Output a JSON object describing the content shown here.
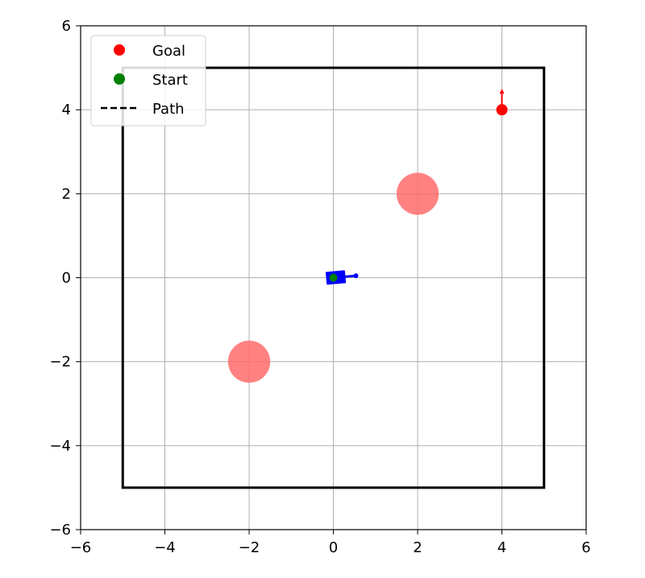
{
  "chart_data": {
    "type": "scatter",
    "xlim": [
      -6,
      6
    ],
    "ylim": [
      -6,
      6
    ],
    "x_ticks": [
      -6,
      -4,
      -2,
      0,
      2,
      4,
      6
    ],
    "y_ticks": [
      -6,
      -4,
      -2,
      0,
      2,
      4,
      6
    ],
    "x_tick_labels": [
      "−6",
      "−4",
      "−2",
      "0",
      "2",
      "4",
      "6"
    ],
    "y_tick_labels": [
      "−6",
      "−4",
      "−2",
      "0",
      "2",
      "4",
      "6"
    ],
    "grid": true,
    "legend_placement": "upper-left",
    "legend": [
      {
        "label": "Goal",
        "marker": "dot",
        "color": "#ff0000"
      },
      {
        "label": "Start",
        "marker": "dot",
        "color": "#008000"
      },
      {
        "label": "Path",
        "marker": "dashed-line",
        "color": "#000000"
      }
    ],
    "boundary": {
      "x": [
        -5,
        5
      ],
      "y": [
        -5,
        5
      ],
      "color": "#000000"
    },
    "obstacles": [
      {
        "x": -2,
        "y": -2,
        "radius": 0.5,
        "color": "#ff6b6b"
      },
      {
        "x": 2,
        "y": 2,
        "radius": 0.5,
        "color": "#ff6b6b"
      }
    ],
    "goal": {
      "x": 4,
      "y": 4,
      "heading_deg": 90,
      "color": "#ff0000"
    },
    "start": {
      "x": 0,
      "y": 0,
      "color": "#008000"
    },
    "robot": {
      "x": 0,
      "y": 0,
      "heading_deg": 5,
      "color": "#0000ff"
    }
  }
}
